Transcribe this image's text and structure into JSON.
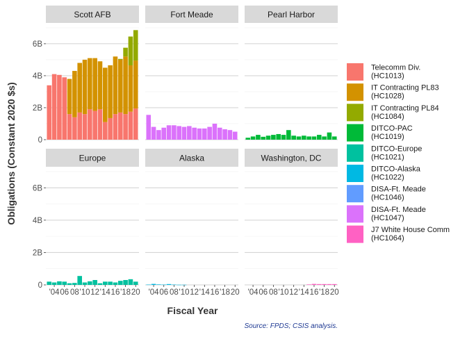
{
  "chart_data": {
    "type": "bar",
    "stacked": true,
    "facet_wrap": true,
    "ylabel": "Obligations (Constant 2020 $s)",
    "xlabel": "Fiscal Year",
    "caption": "Source: FPDS; CSIS analysis.",
    "years": [
      2003,
      2004,
      2005,
      2006,
      2007,
      2008,
      2009,
      2010,
      2011,
      2012,
      2013,
      2014,
      2015,
      2016,
      2017,
      2018,
      2019,
      2020
    ],
    "x_tick_labels": [
      "'04",
      "06",
      "08",
      "'10",
      "12",
      "'14",
      "16",
      "'18",
      "20"
    ],
    "x_tick_years": [
      2004,
      2006,
      2008,
      2010,
      2012,
      2014,
      2016,
      2018,
      2020
    ],
    "ylim": [
      0,
      7.3
    ],
    "y_ticks": [
      0,
      2,
      4,
      6
    ],
    "y_tick_labels": [
      "0",
      "2B",
      "4B",
      "6B"
    ],
    "unit": "billions of constant 2020 dollars",
    "legend_position": "right",
    "legend": [
      {
        "label": "Telecomm Div.\n(HC1013)",
        "color": "#F8766D"
      },
      {
        "label": "IT Contracting PL83\n(HC1028)",
        "color": "#D39200"
      },
      {
        "label": "IT Contracting PL84\n(HC1084)",
        "color": "#93AA00"
      },
      {
        "label": "DITCO-PAC\n(HC1019)",
        "color": "#00BA38"
      },
      {
        "label": "DITCO-Europe\n(HC1021)",
        "color": "#00C19F"
      },
      {
        "label": "DITCO-Alaska\n(HC1022)",
        "color": "#00B9E3"
      },
      {
        "label": "DISA-Ft. Meade\n(HC1046)",
        "color": "#619CFF"
      },
      {
        "label": "DISA-Ft. Meade\n(HC1047)",
        "color": "#DB72FB"
      },
      {
        "label": "J7 White House Comm\n(HC1064)",
        "color": "#FF61C3"
      }
    ],
    "panels": [
      {
        "title": "Scott AFB",
        "series": [
          {
            "name": "Telecomm Div.\n(HC1013)",
            "color": "#F8766D",
            "values": [
              3.4,
              4.1,
              4.05,
              3.9,
              1.6,
              1.4,
              1.7,
              1.6,
              1.9,
              1.8,
              1.9,
              1.1,
              1.35,
              1.6,
              1.7,
              1.6,
              1.75,
              1.95
            ]
          },
          {
            "name": "IT Contracting PL83\n(HC1028)",
            "color": "#D39200",
            "values": [
              0,
              0,
              0,
              0,
              2.2,
              2.9,
              3.1,
              3.4,
              3.2,
              3.3,
              3.0,
              3.4,
              3.3,
              3.6,
              3.3,
              3.6,
              2.9,
              3.0
            ]
          },
          {
            "name": "IT Contracting PL84\n(HC1084)",
            "color": "#93AA00",
            "values": [
              0,
              0,
              0,
              0,
              0,
              0,
              0,
              0,
              0,
              0,
              0,
              0,
              0,
              0,
              0.05,
              0.55,
              1.8,
              1.9
            ]
          }
        ]
      },
      {
        "title": "Fort Meade",
        "series": [
          {
            "name": "DISA-Ft. Meade\n(HC1047)",
            "color": "#DB72FB",
            "values": [
              1.55,
              0.8,
              0.6,
              0.75,
              0.9,
              0.9,
              0.85,
              0.8,
              0.85,
              0.75,
              0.7,
              0.7,
              0.8,
              1.0,
              0.75,
              0.65,
              0.6,
              0.5
            ]
          }
        ]
      },
      {
        "title": "Pearl Harbor",
        "series": [
          {
            "name": "DITCO-PAC\n(HC1019)",
            "color": "#00BA38",
            "values": [
              0.12,
              0.2,
              0.3,
              0.18,
              0.25,
              0.3,
              0.35,
              0.3,
              0.6,
              0.25,
              0.2,
              0.25,
              0.2,
              0.2,
              0.3,
              0.2,
              0.45,
              0.2
            ]
          }
        ]
      },
      {
        "title": "Europe",
        "series": [
          {
            "name": "DITCO-Europe\n(HC1021)",
            "color": "#00C19F",
            "values": [
              0.2,
              0.15,
              0.22,
              0.2,
              0.1,
              0.12,
              0.55,
              0.15,
              0.22,
              0.3,
              0.1,
              0.2,
              0.2,
              0.15,
              0.25,
              0.3,
              0.35,
              0.2
            ]
          }
        ]
      },
      {
        "title": "Alaska",
        "series": [
          {
            "name": "DITCO-Alaska\n(HC1022)",
            "color": "#00B9E3",
            "values": [
              0.02,
              0.06,
              0.03,
              0.02,
              0.05,
              0.02,
              0.01,
              0.01,
              0,
              0,
              0,
              0,
              0,
              0,
              0,
              0,
              0,
              0
            ]
          }
        ]
      },
      {
        "title": "Washington, DC",
        "series": [
          {
            "name": "J7 White House Comm\n(HC1064)",
            "color": "#FF61C3",
            "values": [
              0,
              0,
              0,
              0,
              0,
              0,
              0,
              0,
              0,
              0,
              0,
              0,
              0.03,
              0.06,
              0.05,
              0.05,
              0.05,
              0.05
            ]
          }
        ]
      }
    ]
  }
}
